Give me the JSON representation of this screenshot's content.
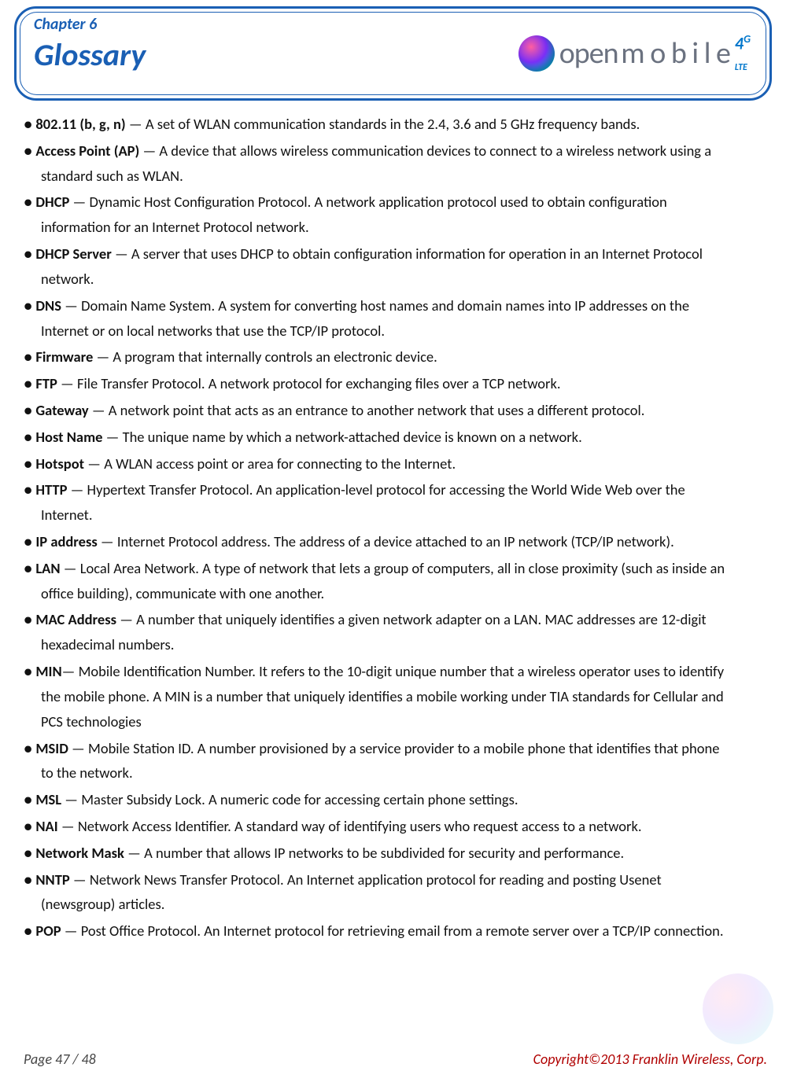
{
  "header": {
    "chapter_label": "Chapter 6",
    "chapter_title": "Glossary",
    "logo_text": "open",
    "logo_subtext": "m o b i l e",
    "lte_4": "4",
    "lte_g": "G",
    "lte_text": "LTE"
  },
  "bullet": "●",
  "dash": " — ",
  "entries": [
    {
      "term": "802.11 (b, g, n)",
      "def": "A set of WLAN communication standards in the 2.4, 3.6 and 5 GHz frequency bands."
    },
    {
      "term": "Access Point (AP)",
      "def": "A device that allows wireless communication devices to connect to a wireless network using a",
      "cont": "standard such as WLAN."
    },
    {
      "term": "DHCP",
      "def": "Dynamic Host Configuration Protocol. A network application protocol used to obtain configuration",
      "cont": "information for an Internet Protocol network."
    },
    {
      "term": "DHCP Server",
      "def": "A server that uses DHCP to obtain configuration information for operation in an Internet Protocol",
      "cont": "network."
    },
    {
      "term": "DNS",
      "def": "Domain Name System. A system for converting host names and domain names into IP addresses on the",
      "cont": "Internet or on local networks that use the TCP/IP protocol."
    },
    {
      "term": "Firmware",
      "def": "A program that internally controls an electronic device."
    },
    {
      "term": "FTP",
      "def": "File Transfer Protocol. A network protocol for exchanging files over a TCP network."
    },
    {
      "term": "Gateway",
      "def": "A network point that acts as an entrance to another network that uses a different protocol."
    },
    {
      "term": "Host Name",
      "def": "The unique name by which a network-attached device is known on a network."
    },
    {
      "term": "Hotspot",
      "def": "A WLAN access point or area for connecting to the Internet."
    },
    {
      "term": "HTTP",
      "def": "Hypertext Transfer Protocol. An application-level protocol for accessing the World Wide Web over the",
      "cont": "Internet."
    },
    {
      "term": "IP address",
      "def": "Internet Protocol address. The address of a device attached to an IP network (TCP/IP network)."
    },
    {
      "term": "LAN",
      "def": "Local Area Network. A type of network that lets a group of computers, all in close proximity (such as inside an",
      "cont": "office building), communicate with one another."
    },
    {
      "term": "MAC Address",
      "def": "A number that uniquely identifies a given network adapter on a LAN. MAC addresses are 12-digit",
      "cont": "hexadecimal numbers."
    },
    {
      "term": "MIN",
      "nospace": true,
      "def": "Mobile Identification Number. It refers to the 10-digit unique number that a wireless operator uses to identify",
      "cont": "the mobile phone. A MIN is a number that uniquely identifies a mobile working under TIA standards for Cellular and",
      "cont2": "PCS technologies"
    },
    {
      "term": "MSID",
      "def": "Mobile Station ID. A number provisioned by a service provider to a mobile phone that identifies that phone",
      "cont": "to the network."
    },
    {
      "term": "MSL",
      "def": "Master Subsidy Lock. A numeric code for accessing certain phone settings."
    },
    {
      "term": "NAI",
      "def": "Network Access Identifier. A standard way of identifying users who request access to a network."
    },
    {
      "term": "Network Mask",
      "def": "A number that allows IP networks to be subdivided for security and performance."
    },
    {
      "term": "NNTP",
      "def": "Network News Transfer Protocol. An Internet application protocol for reading and posting Usenet",
      "cont": "(newsgroup) articles."
    },
    {
      "term": "POP",
      "def": "Post Office Protocol. An Internet protocol for retrieving email from a remote server over a TCP/IP connection."
    }
  ],
  "footer": {
    "page": "Page  47  /  48",
    "copyright": "Copyright©2013  Franklin  Wireless, Corp."
  }
}
